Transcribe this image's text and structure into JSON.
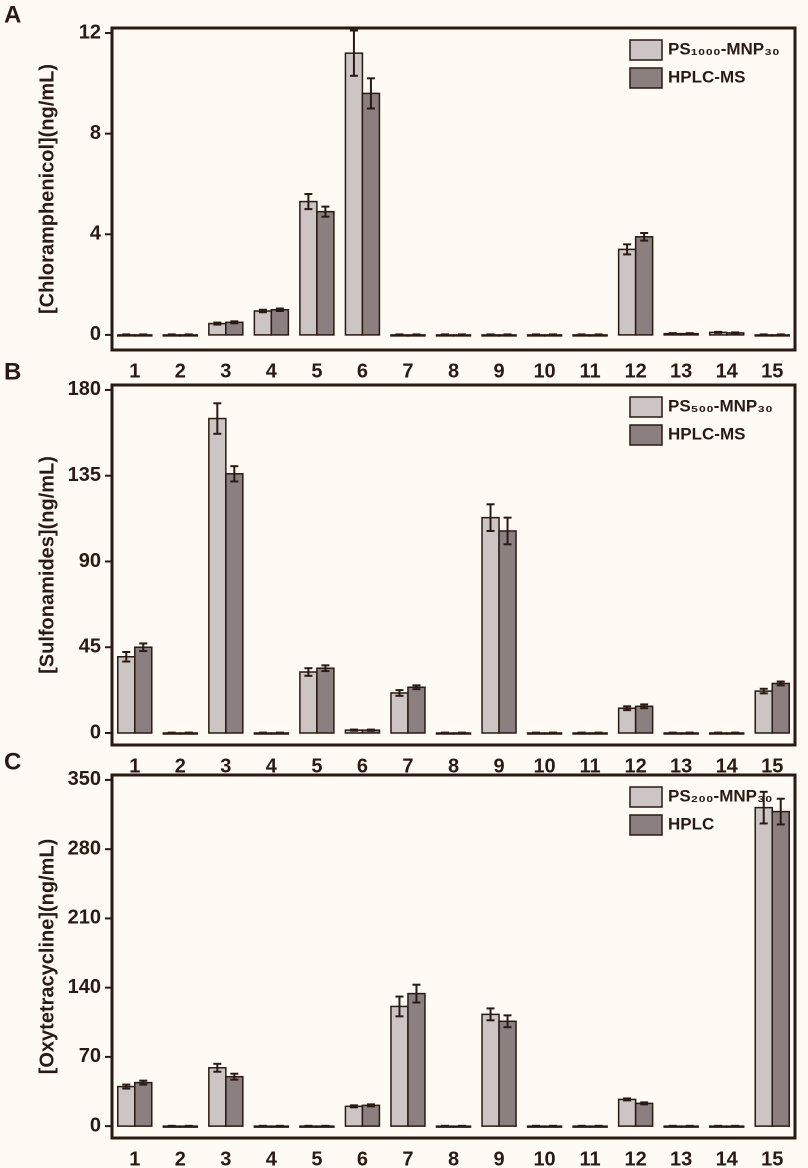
{
  "chart_data": [
    {
      "type": "bar",
      "panel_label": "A",
      "ylabel": "[Chloramphenicol](ng/mL)",
      "categories": [
        "1",
        "2",
        "3",
        "4",
        "5",
        "6",
        "7",
        "8",
        "9",
        "10",
        "11",
        "12",
        "13",
        "14",
        "15"
      ],
      "ylim": [
        -0.6,
        12.2
      ],
      "yticks": [
        0,
        4,
        8,
        12
      ],
      "series": [
        {
          "name": "PS₁₀₀₀-MNP₃₀",
          "color": "#cdc4c4",
          "values": [
            0,
            0,
            0.45,
            0.95,
            5.3,
            11.2,
            0,
            0,
            0,
            0,
            0,
            3.4,
            0.05,
            0.1,
            0
          ],
          "errors": [
            0.02,
            0.02,
            0.04,
            0.05,
            0.3,
            0.9,
            0.02,
            0.02,
            0.02,
            0.02,
            0.02,
            0.2,
            0.02,
            0.02,
            0.02
          ]
        },
        {
          "name": "HPLC-MS",
          "color": "#8b7f80",
          "values": [
            0,
            0,
            0.5,
            1.0,
            4.9,
            9.6,
            0,
            0,
            0,
            0,
            0,
            3.9,
            0.05,
            0.08,
            0
          ],
          "errors": [
            0.02,
            0.02,
            0.04,
            0.05,
            0.2,
            0.6,
            0.02,
            0.02,
            0.02,
            0.02,
            0.02,
            0.15,
            0.02,
            0.02,
            0.02
          ]
        }
      ]
    },
    {
      "type": "bar",
      "panel_label": "B",
      "ylabel": "[Sulfonamides](ng/mL)",
      "categories": [
        "1",
        "2",
        "3",
        "4",
        "5",
        "6",
        "7",
        "8",
        "9",
        "10",
        "11",
        "12",
        "13",
        "14",
        "15"
      ],
      "ylim": [
        -6.3,
        182.6
      ],
      "yticks": [
        0,
        45,
        90,
        135,
        180
      ],
      "series": [
        {
          "name": "PS₅₀₀-MNP₃₀",
          "color": "#cdc4c4",
          "values": [
            40,
            0,
            165,
            0,
            32,
            1.5,
            21,
            0,
            113,
            0,
            0,
            13,
            0,
            0,
            22
          ],
          "errors": [
            2.5,
            0.2,
            8,
            0.2,
            2,
            0.3,
            1.5,
            0.2,
            7,
            0.2,
            0.2,
            1,
            0.2,
            0.2,
            1.2
          ]
        },
        {
          "name": "HPLC-MS",
          "color": "#8b7f80",
          "values": [
            45,
            0,
            136,
            0,
            34,
            1.5,
            24,
            0,
            106,
            0,
            0,
            14,
            0,
            0,
            26
          ],
          "errors": [
            2,
            0.2,
            4,
            0.2,
            1.5,
            0.3,
            1,
            0.2,
            7,
            0.2,
            0.2,
            1,
            0.2,
            0.2,
            1
          ]
        }
      ]
    },
    {
      "type": "bar",
      "panel_label": "C",
      "ylabel": "[Oxytetracycline](ng/mL)",
      "categories": [
        "1",
        "2",
        "3",
        "4",
        "5",
        "6",
        "7",
        "8",
        "9",
        "10",
        "11",
        "12",
        "13",
        "14",
        "15"
      ],
      "ylim": [
        -12,
        355
      ],
      "yticks": [
        0,
        70,
        140,
        210,
        280,
        350
      ],
      "series": [
        {
          "name": "PS₂₀₀-MNP₃₀",
          "color": "#cdc4c4",
          "values": [
            40,
            0,
            59,
            0,
            0,
            20,
            121,
            0,
            113,
            0,
            0,
            27,
            0,
            0,
            322
          ],
          "errors": [
            2,
            0.3,
            4,
            0.3,
            0.3,
            1,
            10,
            0.3,
            6,
            0.3,
            0.3,
            1,
            0.3,
            0.3,
            16
          ]
        },
        {
          "name": "HPLC",
          "color": "#8b7f80",
          "values": [
            44,
            0,
            50,
            0,
            0,
            21,
            134,
            0,
            106,
            0,
            0,
            23,
            0,
            0,
            318
          ],
          "errors": [
            2,
            0.3,
            3,
            0.3,
            0.3,
            1,
            9,
            0.3,
            6,
            0.3,
            0.3,
            1,
            0.3,
            0.3,
            13
          ]
        }
      ]
    }
  ]
}
